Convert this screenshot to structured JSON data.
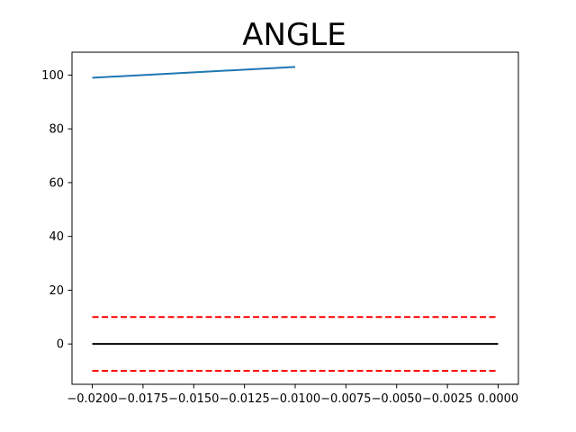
{
  "chart_data": {
    "type": "line",
    "title": "ANGLE",
    "xlabel": "",
    "ylabel": "",
    "xlim": [
      -0.021,
      0.001
    ],
    "ylim": [
      -15,
      108.5
    ],
    "x_ticks": [
      -0.02,
      -0.0175,
      -0.015,
      -0.0125,
      -0.01,
      -0.0075,
      -0.005,
      -0.0025,
      0.0
    ],
    "x_tick_labels": [
      "−0.0200",
      "−0.0175",
      "−0.0150",
      "−0.0125",
      "−0.0100",
      "−0.0075",
      "−0.0050",
      "−0.0025",
      "0.0000"
    ],
    "y_ticks": [
      0,
      20,
      40,
      60,
      80,
      100
    ],
    "y_tick_labels": [
      "0",
      "20",
      "40",
      "60",
      "80",
      "100"
    ],
    "grid": false,
    "legend": "none",
    "series": [
      {
        "color": "#1f77b4",
        "style": "solid",
        "x": [
          -0.02,
          -0.01
        ],
        "y": [
          99,
          103
        ]
      },
      {
        "color": "#000000",
        "style": "solid",
        "x": [
          -0.02,
          0.0
        ],
        "y": [
          0,
          0
        ]
      },
      {
        "color": "#ff0000",
        "style": "dashed",
        "x": [
          -0.02,
          0.0
        ],
        "y": [
          10,
          10
        ]
      },
      {
        "color": "#ff0000",
        "style": "dashed",
        "x": [
          -0.02,
          0.0
        ],
        "y": [
          -10,
          -10
        ]
      }
    ]
  }
}
